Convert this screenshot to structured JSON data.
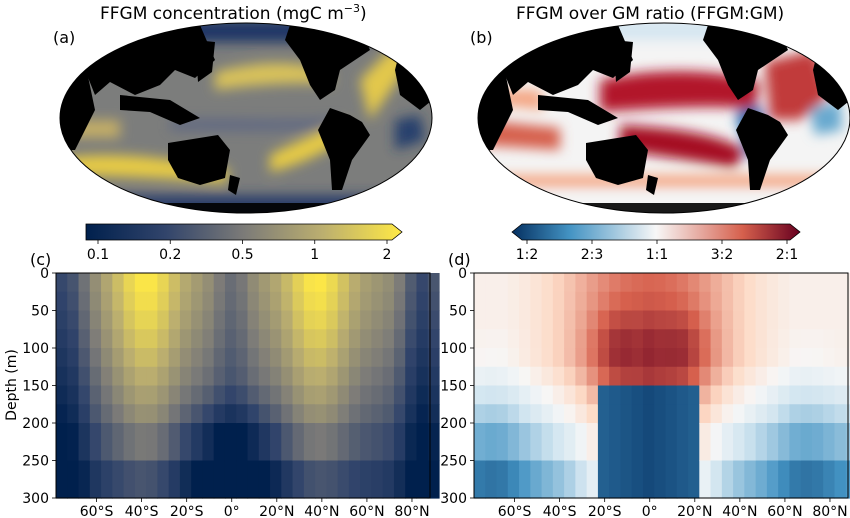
{
  "panels": [
    {
      "label": "(a)",
      "title": "FFGM concentration (mgC m",
      "title_sup": "−3",
      "title_end": ")"
    },
    {
      "label": "(b)",
      "title": "FFGM over GM ratio (FFGM:GM)"
    },
    {
      "label": "(c)"
    },
    {
      "label": "(d)"
    }
  ],
  "colorbars": [
    {
      "ticks": [
        "0.1",
        "0.2",
        "0.5",
        "1",
        "2"
      ],
      "colormap": "cividis-like",
      "colors": [
        "#00204d",
        "#7c7b78",
        "#ffe945"
      ]
    },
    {
      "ticks": [
        "1:2",
        "2:3",
        "1:1",
        "3:2",
        "2:1"
      ],
      "colormap": "RdBu_r",
      "colors": [
        "#053061",
        "#f7f7f7",
        "#67001f"
      ]
    }
  ],
  "chart_data": [
    {
      "type": "map",
      "panel": "(a)",
      "title": "FFGM concentration (mgC m−3)",
      "projection": "Robinson, Pacific-centred",
      "description": "High concentrations (yellow) in subtropical gyre bands of both hemispheres; low values (dark blue) at high latitudes and equatorial/coastal upwelling."
    },
    {
      "type": "map",
      "panel": "(b)",
      "title": "FFGM over GM ratio (FFGM:GM)",
      "projection": "Robinson, Pacific-centred",
      "description": "Ratio > 1 (red) across subtropical Pacific; ratio < 1 (blue) along the eastern equatorial Pacific and high latitudes."
    },
    {
      "type": "heatmap",
      "panel": "(c)",
      "xlabel": "",
      "ylabel": "Depth (m)",
      "x_ticks": [
        "60°S",
        "40°S",
        "20°S",
        "0°",
        "20°N",
        "40°N",
        "60°N",
        "80°N"
      ],
      "x_tick_values": [
        -60,
        -40,
        -20,
        0,
        20,
        40,
        60,
        80
      ],
      "xlim": [
        -78,
        88
      ],
      "y_ticks": [
        "0",
        "50",
        "100",
        "150",
        "200",
        "250",
        "300"
      ],
      "ylim": [
        300,
        0
      ],
      "colorscale_ticks": [
        0.1,
        0.2,
        0.5,
        1,
        2
      ],
      "grid_lat_step": 5,
      "depth_levels": [
        0,
        25,
        50,
        75,
        100,
        125,
        150,
        175,
        200,
        250,
        300
      ]
    },
    {
      "type": "heatmap",
      "panel": "(d)",
      "xlabel": "",
      "ylabel": "",
      "x_ticks": [
        "60°S",
        "40°S",
        "20°S",
        "0°",
        "20°N",
        "40°N",
        "60°N",
        "80°N"
      ],
      "x_tick_values": [
        -60,
        -40,
        -20,
        0,
        20,
        40,
        60,
        80
      ],
      "xlim": [
        -78,
        88
      ],
      "y_ticks": [
        "0",
        "50",
        "100",
        "150",
        "200",
        "250",
        "300"
      ],
      "ylim": [
        300,
        0
      ],
      "colorscale_ticks": [
        "1:2",
        "2:3",
        "1:1",
        "3:2",
        "2:1"
      ]
    }
  ],
  "axis": {
    "ylabel": "Depth (m)"
  }
}
